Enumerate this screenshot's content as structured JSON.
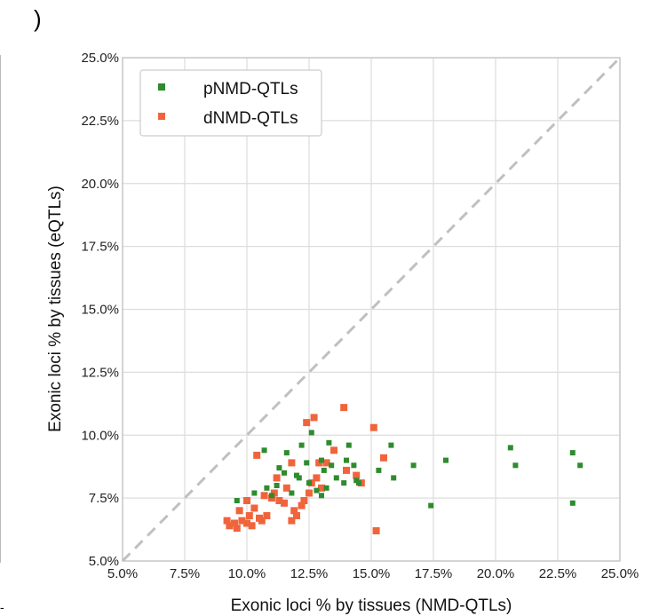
{
  "panel_label": ")",
  "chart_data": {
    "type": "scatter",
    "title": "",
    "xlabel": "Exonic loci % by tissues (NMD-QTLs)",
    "ylabel": "Exonic loci % by tissues (eQTLs)",
    "xlim": [
      5.0,
      25.0
    ],
    "ylim": [
      5.0,
      25.0
    ],
    "ticks": [
      5.0,
      7.5,
      10.0,
      12.5,
      15.0,
      17.5,
      20.0,
      22.5,
      25.0
    ],
    "tick_labels": [
      "5.0%",
      "7.5%",
      "10.0%",
      "12.5%",
      "15.0%",
      "17.5%",
      "20.0%",
      "22.5%",
      "25.0%"
    ],
    "grid": true,
    "legend_position": "top-left",
    "reference_line": "y = x (dashed)",
    "series": [
      {
        "name": "pNMD-QTLs",
        "color": "#2e8b2e",
        "points": [
          [
            9.6,
            7.4
          ],
          [
            10.3,
            7.7
          ],
          [
            10.7,
            9.4
          ],
          [
            10.8,
            7.9
          ],
          [
            11.0,
            7.6
          ],
          [
            11.2,
            8.0
          ],
          [
            11.3,
            8.7
          ],
          [
            11.5,
            8.5
          ],
          [
            11.6,
            9.3
          ],
          [
            11.8,
            7.7
          ],
          [
            12.0,
            8.4
          ],
          [
            12.1,
            8.3
          ],
          [
            12.2,
            9.6
          ],
          [
            12.4,
            8.9
          ],
          [
            12.5,
            8.1
          ],
          [
            12.6,
            10.1
          ],
          [
            12.8,
            7.8
          ],
          [
            13.0,
            7.6
          ],
          [
            13.0,
            9.0
          ],
          [
            13.1,
            8.6
          ],
          [
            13.2,
            7.9
          ],
          [
            13.3,
            9.7
          ],
          [
            13.4,
            8.8
          ],
          [
            13.6,
            8.3
          ],
          [
            13.9,
            8.1
          ],
          [
            14.0,
            9.0
          ],
          [
            14.1,
            9.6
          ],
          [
            14.3,
            8.8
          ],
          [
            14.4,
            8.2
          ],
          [
            14.5,
            8.1
          ],
          [
            15.3,
            8.6
          ],
          [
            15.8,
            9.6
          ],
          [
            15.9,
            8.3
          ],
          [
            16.7,
            8.8
          ],
          [
            17.4,
            7.2
          ],
          [
            18.0,
            9.0
          ],
          [
            20.6,
            9.5
          ],
          [
            20.8,
            8.8
          ],
          [
            23.1,
            9.3
          ],
          [
            23.1,
            7.3
          ],
          [
            23.4,
            8.8
          ]
        ]
      },
      {
        "name": "dNMD-QTLs",
        "color": "#f0643c",
        "points": [
          [
            9.2,
            6.6
          ],
          [
            9.3,
            6.4
          ],
          [
            9.5,
            6.5
          ],
          [
            9.6,
            6.3
          ],
          [
            9.7,
            7.0
          ],
          [
            9.8,
            6.6
          ],
          [
            10.0,
            6.5
          ],
          [
            10.0,
            7.4
          ],
          [
            10.1,
            6.8
          ],
          [
            10.2,
            6.4
          ],
          [
            10.3,
            7.1
          ],
          [
            10.4,
            9.2
          ],
          [
            10.5,
            6.7
          ],
          [
            10.6,
            6.6
          ],
          [
            10.7,
            7.6
          ],
          [
            10.8,
            6.8
          ],
          [
            11.0,
            7.5
          ],
          [
            11.1,
            7.7
          ],
          [
            11.2,
            8.3
          ],
          [
            11.3,
            7.4
          ],
          [
            11.5,
            7.3
          ],
          [
            11.6,
            7.9
          ],
          [
            11.8,
            8.9
          ],
          [
            11.8,
            6.6
          ],
          [
            11.9,
            7.0
          ],
          [
            12.0,
            6.8
          ],
          [
            12.2,
            7.2
          ],
          [
            12.3,
            7.4
          ],
          [
            12.4,
            10.5
          ],
          [
            12.5,
            7.7
          ],
          [
            12.6,
            8.1
          ],
          [
            12.7,
            10.7
          ],
          [
            12.8,
            8.3
          ],
          [
            12.9,
            8.9
          ],
          [
            13.0,
            7.9
          ],
          [
            13.2,
            8.9
          ],
          [
            13.5,
            9.4
          ],
          [
            13.9,
            11.1
          ],
          [
            14.0,
            8.6
          ],
          [
            14.4,
            8.4
          ],
          [
            14.6,
            8.1
          ],
          [
            15.1,
            10.3
          ],
          [
            15.2,
            6.2
          ],
          [
            15.5,
            9.1
          ]
        ]
      }
    ]
  }
}
